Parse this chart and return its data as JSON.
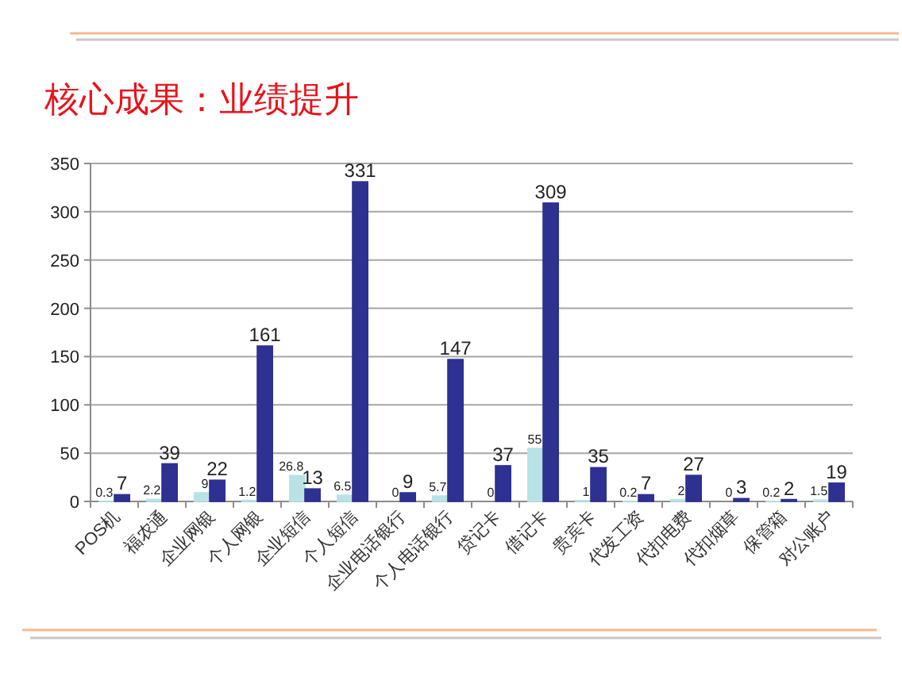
{
  "chart_data": {
    "type": "bar",
    "title": "核心成果：业绩提升",
    "categories": [
      "POS机",
      "福农通",
      "企业网银",
      "个人网银",
      "企业短信",
      "个人短信",
      "企业电话银行",
      "个人电话银行",
      "贷记卡",
      "借记卡",
      "贵宾卡",
      "代发工资",
      "代扣电费",
      "代扣烟草",
      "保管箱",
      "对公账户"
    ],
    "series": [
      {
        "color": "#b9e2e5",
        "values": [
          0.3,
          2.2,
          9,
          1.2,
          26.8,
          6.5,
          0,
          5.7,
          0,
          55,
          1,
          0.2,
          2,
          0,
          0.2,
          1.5
        ]
      },
      {
        "color": "#2e3192",
        "values": [
          7,
          39,
          22,
          161,
          13,
          331,
          9,
          147,
          37,
          309,
          35,
          7,
          27,
          3,
          2,
          19
        ]
      }
    ],
    "ylim": [
      0,
      350
    ],
    "yticks": [
      0,
      50,
      100,
      150,
      200,
      250,
      300,
      350
    ],
    "grid": "y",
    "data_labels": true
  }
}
